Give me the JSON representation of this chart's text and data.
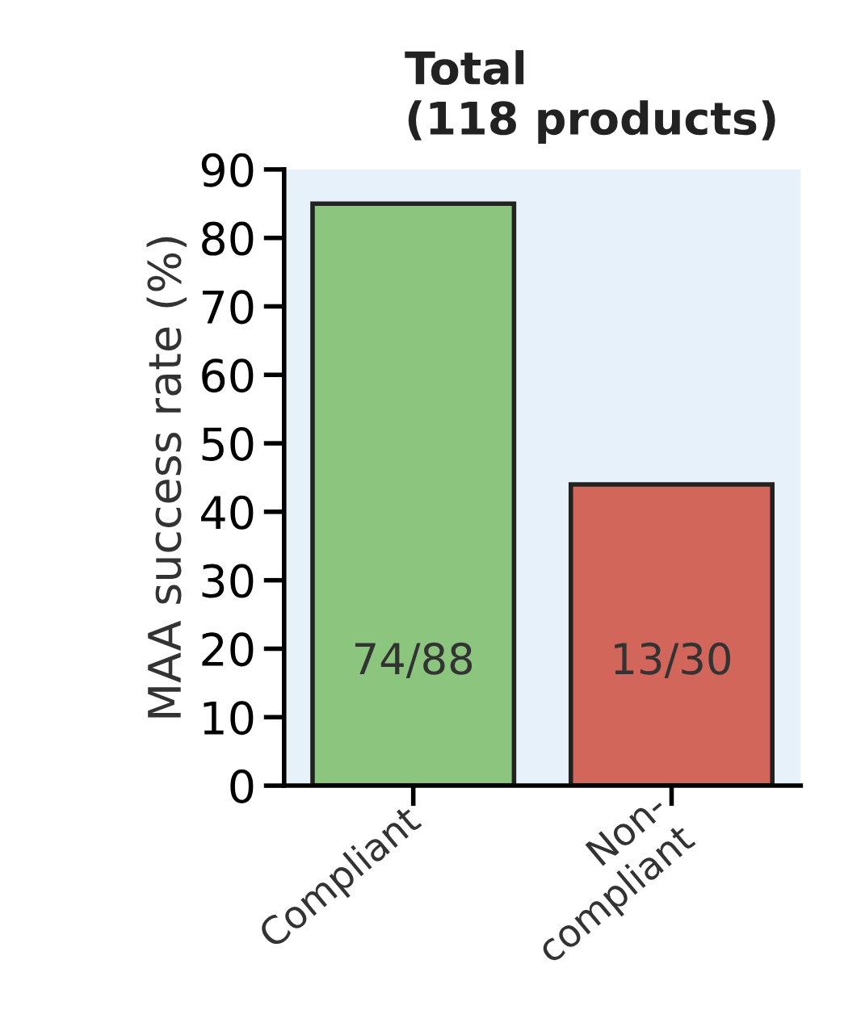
{
  "chart_data": {
    "type": "bar",
    "title": "Total\n(118 products)",
    "ylabel": "MAA success rate (%)",
    "categories": [
      "Compliant",
      "Non-\ncompliant"
    ],
    "values": [
      85,
      44
    ],
    "colors": [
      "#8cc67e",
      "#d2665a"
    ],
    "value_labels": [
      "74/88",
      "13/30"
    ],
    "ylim": [
      0,
      90
    ],
    "yticks": [
      0,
      10,
      20,
      30,
      40,
      50,
      60,
      70,
      80,
      90
    ],
    "grid": false
  }
}
